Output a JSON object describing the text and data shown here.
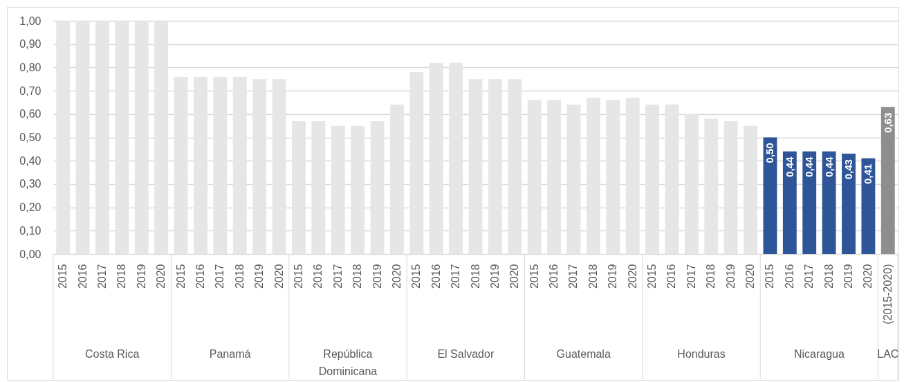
{
  "chart_data": {
    "type": "bar",
    "categories": [
      "2015",
      "2016",
      "2017",
      "2018",
      "2019",
      "2020",
      "2015",
      "2016",
      "2017",
      "2018",
      "2019",
      "2020",
      "2015",
      "2016",
      "2017",
      "2018",
      "2019",
      "2020",
      "2015",
      "2016",
      "2017",
      "2018",
      "2019",
      "2020",
      "2015",
      "2016",
      "2017",
      "2018",
      "2019",
      "2020",
      "2015",
      "2016",
      "2017",
      "2018",
      "2019",
      "2020",
      "2015",
      "2016",
      "2017",
      "2018",
      "2019",
      "2020",
      "(2015-2020)"
    ],
    "values": [
      1.0,
      1.0,
      1.0,
      1.0,
      1.0,
      1.0,
      0.76,
      0.76,
      0.76,
      0.76,
      0.75,
      0.75,
      0.57,
      0.57,
      0.55,
      0.55,
      0.57,
      0.64,
      0.78,
      0.82,
      0.82,
      0.75,
      0.75,
      0.75,
      0.66,
      0.66,
      0.64,
      0.67,
      0.66,
      0.67,
      0.64,
      0.64,
      0.6,
      0.58,
      0.57,
      0.55,
      0.5,
      0.44,
      0.44,
      0.44,
      0.43,
      0.41,
      0.63
    ],
    "colors": [
      "#e7e6e6",
      "#e7e6e6",
      "#e7e6e6",
      "#e7e6e6",
      "#e7e6e6",
      "#e7e6e6",
      "#e7e6e6",
      "#e7e6e6",
      "#e7e6e6",
      "#e7e6e6",
      "#e7e6e6",
      "#e7e6e6",
      "#e7e6e6",
      "#e7e6e6",
      "#e7e6e6",
      "#e7e6e6",
      "#e7e6e6",
      "#e7e6e6",
      "#e7e6e6",
      "#e7e6e6",
      "#e7e6e6",
      "#e7e6e6",
      "#e7e6e6",
      "#e7e6e6",
      "#e7e6e6",
      "#e7e6e6",
      "#e7e6e6",
      "#e7e6e6",
      "#e7e6e6",
      "#e7e6e6",
      "#e7e6e6",
      "#e7e6e6",
      "#e7e6e6",
      "#e7e6e6",
      "#e7e6e6",
      "#e7e6e6",
      "#2e5597",
      "#2e5597",
      "#2e5597",
      "#2e5597",
      "#2e5597",
      "#2e5597",
      "#8e8e90"
    ],
    "value_labels": [
      null,
      null,
      null,
      null,
      null,
      null,
      null,
      null,
      null,
      null,
      null,
      null,
      null,
      null,
      null,
      null,
      null,
      null,
      null,
      null,
      null,
      null,
      null,
      null,
      null,
      null,
      null,
      null,
      null,
      null,
      null,
      null,
      null,
      null,
      null,
      null,
      "0,50",
      "0,44",
      "0,44",
      "0,44",
      "0,43",
      "0,41",
      "0,63"
    ],
    "annotations": [
      "Costa Rica",
      "Panamá",
      "República Dominicana",
      "El Salvador",
      "Guatemala",
      "Honduras",
      "Nicaragua",
      "LAC"
    ],
    "ylim": [
      0,
      1
    ],
    "yticks": [
      {
        "value": 0,
        "label": "0,00"
      },
      {
        "value": 0.1,
        "label": "0,10"
      },
      {
        "value": 0.2,
        "label": "0,20"
      },
      {
        "value": 0.3,
        "label": "0,30"
      },
      {
        "value": 0.4,
        "label": "0,40"
      },
      {
        "value": 0.5,
        "label": "0,50"
      },
      {
        "value": 0.6,
        "label": "0,60"
      },
      {
        "value": 0.7,
        "label": "0,70"
      },
      {
        "value": 0.8,
        "label": "0,80"
      },
      {
        "value": 0.9,
        "label": "0,90"
      },
      {
        "value": 1,
        "label": "1,00"
      }
    ],
    "grid": "y"
  }
}
